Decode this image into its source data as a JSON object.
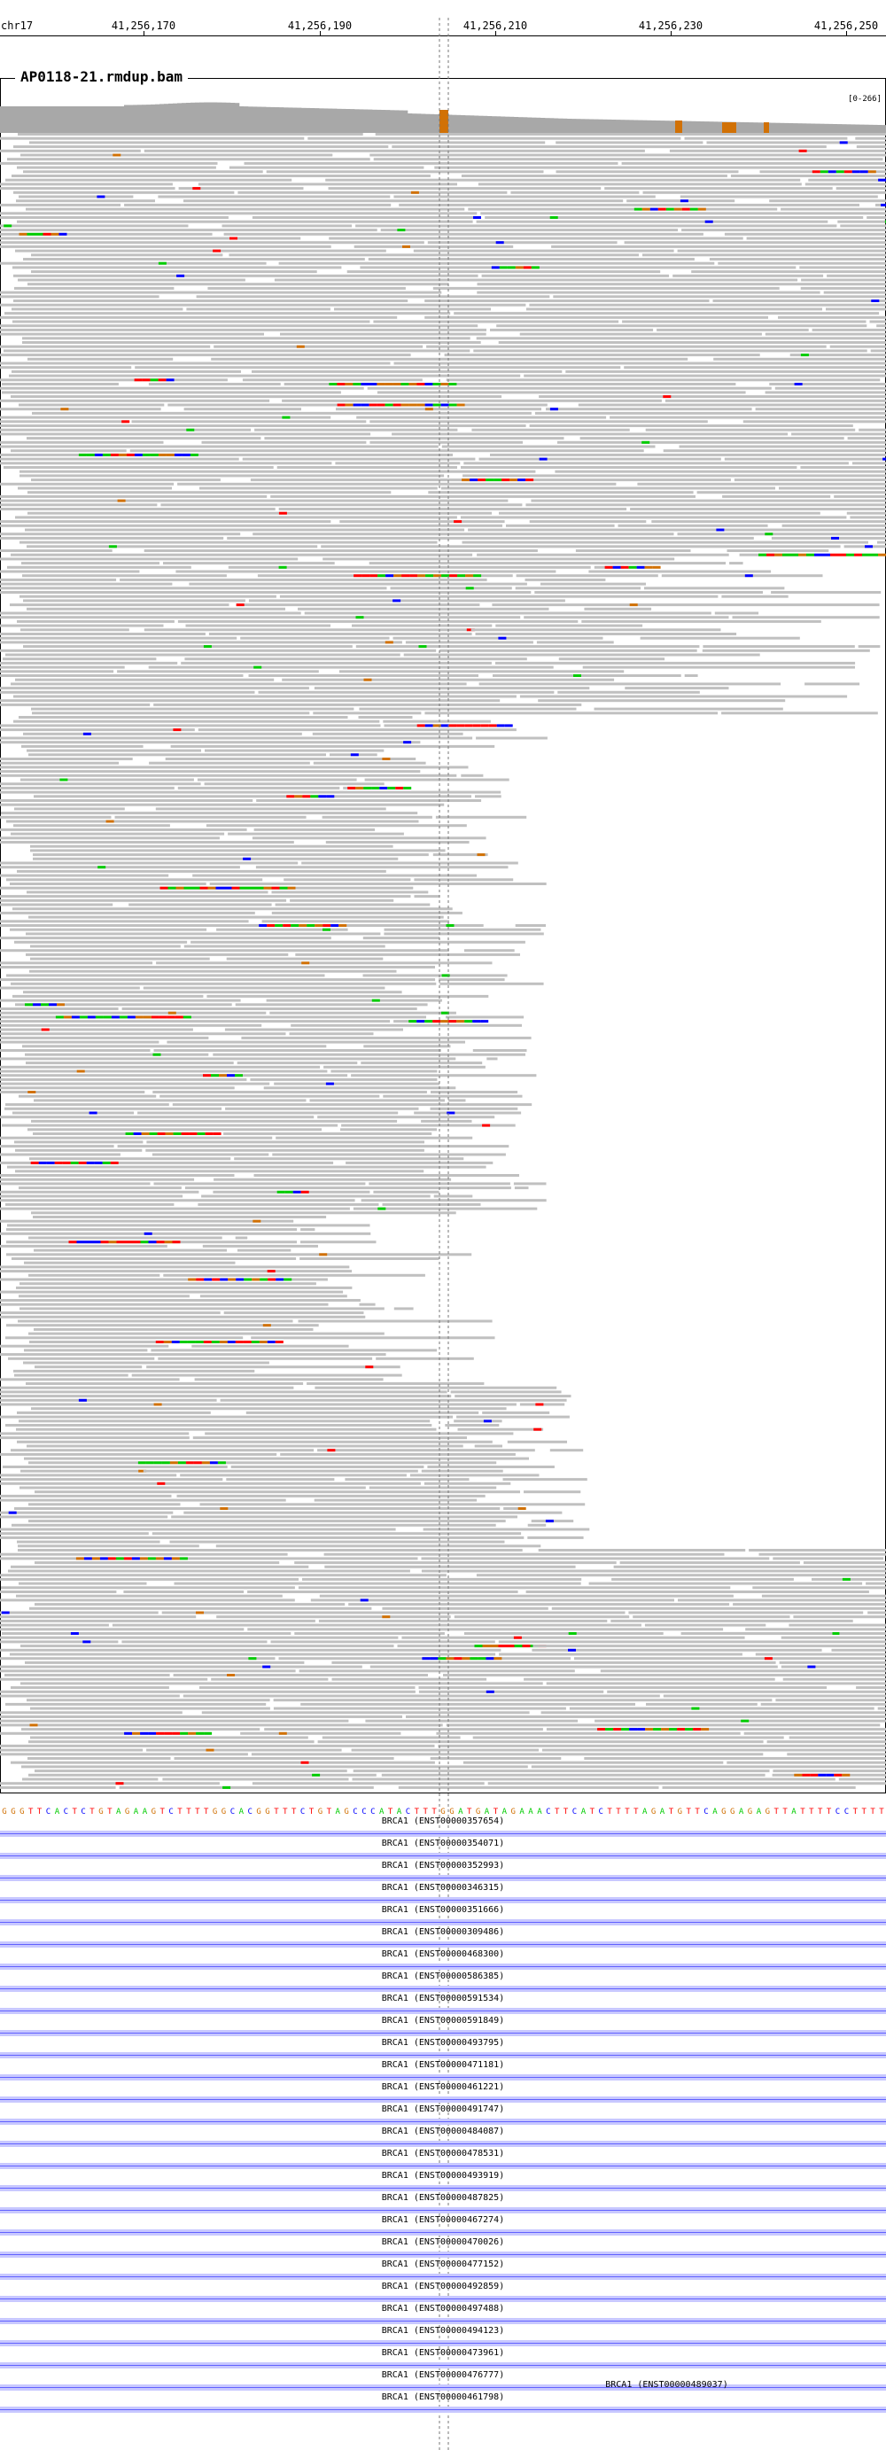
{
  "ruler": {
    "chrom": "chr17",
    "ticks": [
      {
        "label": "41,256,170"
      },
      {
        "label": "41,256,190"
      },
      {
        "label": "41,256,210"
      },
      {
        "label": "41,256,230"
      },
      {
        "label": "41,256,250"
      }
    ]
  },
  "track": {
    "title": "AP0118-21.rmdup.bam",
    "range": "[0-266]"
  },
  "colors": {
    "read": "#c0c0c0",
    "coverage": "#a8a8a8",
    "A": "#00cc00",
    "C": "#0000ff",
    "G": "#d17105",
    "T": "#ff0000",
    "exon": "#c8c8ff",
    "intron": "#6060ff"
  },
  "sequence": "GGGTTCACTCTGTAGAAGTCTTTTGGCACGGTTTCTGTAGCCCATACTTTGGATGATAGAAACTTCATCTTTTAGATGTTCAGGAGAGTTATTTTCCTTTT",
  "transcripts": [
    "BRCA1 (ENST00000357654)",
    "BRCA1 (ENST00000354071)",
    "BRCA1 (ENST00000352993)",
    "BRCA1 (ENST00000346315)",
    "BRCA1 (ENST00000351666)",
    "BRCA1 (ENST00000309486)",
    "BRCA1 (ENST00000468300)",
    "BRCA1 (ENST00000586385)",
    "BRCA1 (ENST00000591534)",
    "BRCA1 (ENST00000591849)",
    "BRCA1 (ENST00000493795)",
    "BRCA1 (ENST00000471181)",
    "BRCA1 (ENST00000461221)",
    "BRCA1 (ENST00000491747)",
    "BRCA1 (ENST00000484087)",
    "BRCA1 (ENST00000478531)",
    "BRCA1 (ENST00000493919)",
    "BRCA1 (ENST00000487825)",
    "BRCA1 (ENST00000467274)",
    "BRCA1 (ENST00000470026)",
    "BRCA1 (ENST00000477152)",
    "BRCA1 (ENST00000492859)",
    "BRCA1 (ENST00000497488)",
    "BRCA1 (ENST00000494123)",
    "BRCA1 (ENST00000473961)",
    "BRCA1 (ENST00000476777)",
    "BRCA1 (ENST00000461798)",
    "BRCA1 (ENST00000489037)"
  ]
}
